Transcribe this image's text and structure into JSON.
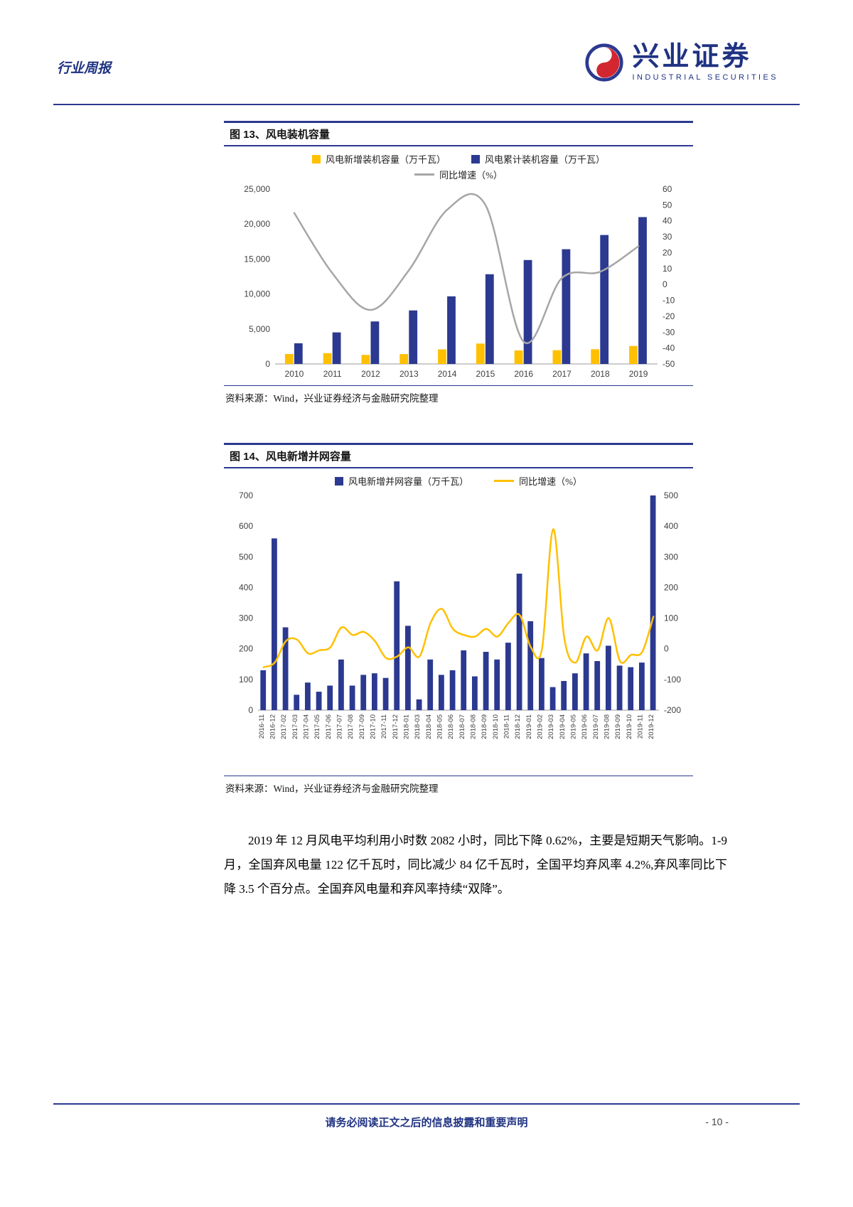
{
  "page": {
    "header": {
      "report_type": "行业周报",
      "brand_name": "兴业证券",
      "brand_subtitle": "INDUSTRIAL SECURITIES"
    },
    "paragraph": "2019 年 12 月风电平均利用小时数 2082 小时，同比下降 0.62%，主要是短期天气影响。1-9 月，全国弃风电量 122 亿千瓦时，同比减少 84 亿千瓦时，全国平均弃风率 4.2%,弃风率同比下降 3.5 个百分点。全国弃风电量和弃风率持续“双降”。",
    "footer": {
      "disclaimer": "请务必阅读正文之后的信息披露和重要声明",
      "page_number": "- 10 -"
    }
  },
  "colors": {
    "navy": "#2B3990",
    "yellow": "#FFC000",
    "gray_line": "#A6A6A6",
    "brand_red": "#D22630"
  },
  "chart_data": [
    {
      "type": "bar",
      "figure_label": "图 13、风电装机容量",
      "source": "资料来源：Wind，兴业证券经济与金融研究院整理",
      "categories": [
        "2010",
        "2011",
        "2012",
        "2013",
        "2014",
        "2015",
        "2016",
        "2017",
        "2018",
        "2019"
      ],
      "series": [
        {
          "name": "风电新增装机容量（万千瓦）",
          "kind": "bar",
          "axis": "left",
          "color": "#FFC000",
          "values": [
            1420,
            1540,
            1290,
            1410,
            2080,
            2920,
            1930,
            1970,
            2100,
            2570
          ]
        },
        {
          "name": "风电累计装机容量（万千瓦）",
          "kind": "bar",
          "axis": "left",
          "color": "#2B3990",
          "values": [
            2960,
            4510,
            6080,
            7650,
            9660,
            12830,
            14860,
            16400,
            18430,
            21000
          ]
        },
        {
          "name": "同比增速（%）",
          "kind": "line",
          "axis": "right",
          "color": "#A6A6A6",
          "values": [
            45,
            7,
            -16,
            9,
            47,
            50,
            -36,
            4,
            8,
            24
          ]
        }
      ],
      "left_axis": {
        "min": 0,
        "max": 25000,
        "step": 5000,
        "format": "thousands"
      },
      "right_axis": {
        "min": -50,
        "max": 60,
        "step": 10
      },
      "legend_rows": [
        [
          0,
          1
        ],
        [
          2
        ]
      ],
      "grid": false,
      "legend_position": "top"
    },
    {
      "type": "bar",
      "figure_label": "图 14、风电新增并网容量",
      "source": "资料来源：Wind，兴业证券经济与金融研究院整理",
      "categories": [
        "2016-11",
        "2016-12",
        "2017-02",
        "2017-03",
        "2017-04",
        "2017-05",
        "2017-06",
        "2017-07",
        "2017-08",
        "2017-09",
        "2017-10",
        "2017-11",
        "2017-12",
        "2018-01",
        "2018-03",
        "2018-04",
        "2018-05",
        "2018-06",
        "2018-07",
        "2018-08",
        "2018-09",
        "2018-10",
        "2018-11",
        "2018-12",
        "2019-01",
        "2019-02",
        "2019-03",
        "2019-04",
        "2019-05",
        "2019-06",
        "2019-07",
        "2019-08",
        "2019-09",
        "2019-10",
        "2019-11",
        "2019-12"
      ],
      "series": [
        {
          "name": "风电新增并网容量（万千瓦）",
          "kind": "bar",
          "axis": "left",
          "color": "#2B3990",
          "values": [
            130,
            560,
            270,
            50,
            90,
            60,
            80,
            165,
            80,
            115,
            120,
            105,
            420,
            275,
            35,
            165,
            115,
            130,
            195,
            110,
            190,
            165,
            220,
            445,
            290,
            170,
            75,
            95,
            120,
            185,
            160,
            210,
            145,
            140,
            155,
            700
          ]
        },
        {
          "name": "同比增速（%）",
          "kind": "line",
          "axis": "right",
          "color": "#FFC000",
          "values": [
            -60,
            -45,
            25,
            30,
            -15,
            -5,
            5,
            70,
            45,
            55,
            25,
            -30,
            -25,
            5,
            -25,
            85,
            130,
            65,
            45,
            40,
            65,
            40,
            85,
            110,
            5,
            0,
            390,
            35,
            -45,
            40,
            -5,
            100,
            -40,
            -20,
            -10,
            105
          ]
        }
      ],
      "left_axis": {
        "min": 0,
        "max": 700,
        "step": 100
      },
      "right_axis": {
        "min": -200,
        "max": 500,
        "step": 100
      },
      "legend_rows": [
        [
          0,
          1
        ]
      ],
      "grid": false,
      "legend_position": "top"
    }
  ]
}
